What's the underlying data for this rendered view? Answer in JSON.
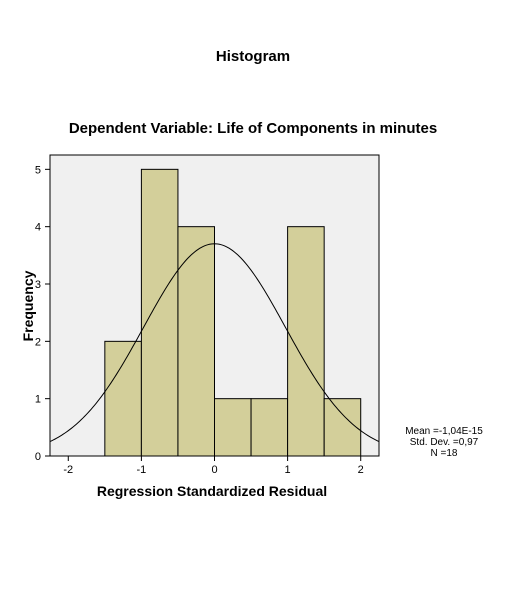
{
  "chart_data": {
    "type": "bar",
    "subtype": "histogram",
    "title": "Histogram",
    "subtitle": "Dependent Variable: Life of Components in minutes",
    "xlabel": "Regression Standardized Residual",
    "ylabel": "Frequency",
    "xlim": [
      -2.25,
      2.25
    ],
    "ylim": [
      0,
      5.25
    ],
    "xticks": [
      -2,
      -1,
      0,
      1,
      2
    ],
    "yticks": [
      0,
      1,
      2,
      3,
      4,
      5
    ],
    "bins": [
      {
        "start": -1.5,
        "end": -1.0,
        "value": 2
      },
      {
        "start": -1.0,
        "end": -0.5,
        "value": 5
      },
      {
        "start": -0.5,
        "end": 0.0,
        "value": 4
      },
      {
        "start": 0.0,
        "end": 0.5,
        "value": 1
      },
      {
        "start": 0.5,
        "end": 1.0,
        "value": 1
      },
      {
        "start": 1.0,
        "end": 1.5,
        "value": 4
      },
      {
        "start": 1.5,
        "end": 2.0,
        "value": 1
      }
    ],
    "normal_curve": {
      "mean": 0,
      "sd": 0.97,
      "n": 18,
      "bin_width": 0.5
    },
    "stats": {
      "mean": "Mean =-1,04E-15",
      "std_dev": "Std. Dev. =0,97",
      "n": "N =18"
    },
    "colors": {
      "plot_background": "#f0f0f0",
      "bar_fill": "#d3cf9a",
      "bar_stroke": "#000000",
      "curve": "#000000"
    },
    "grid": false,
    "legend": "none"
  }
}
